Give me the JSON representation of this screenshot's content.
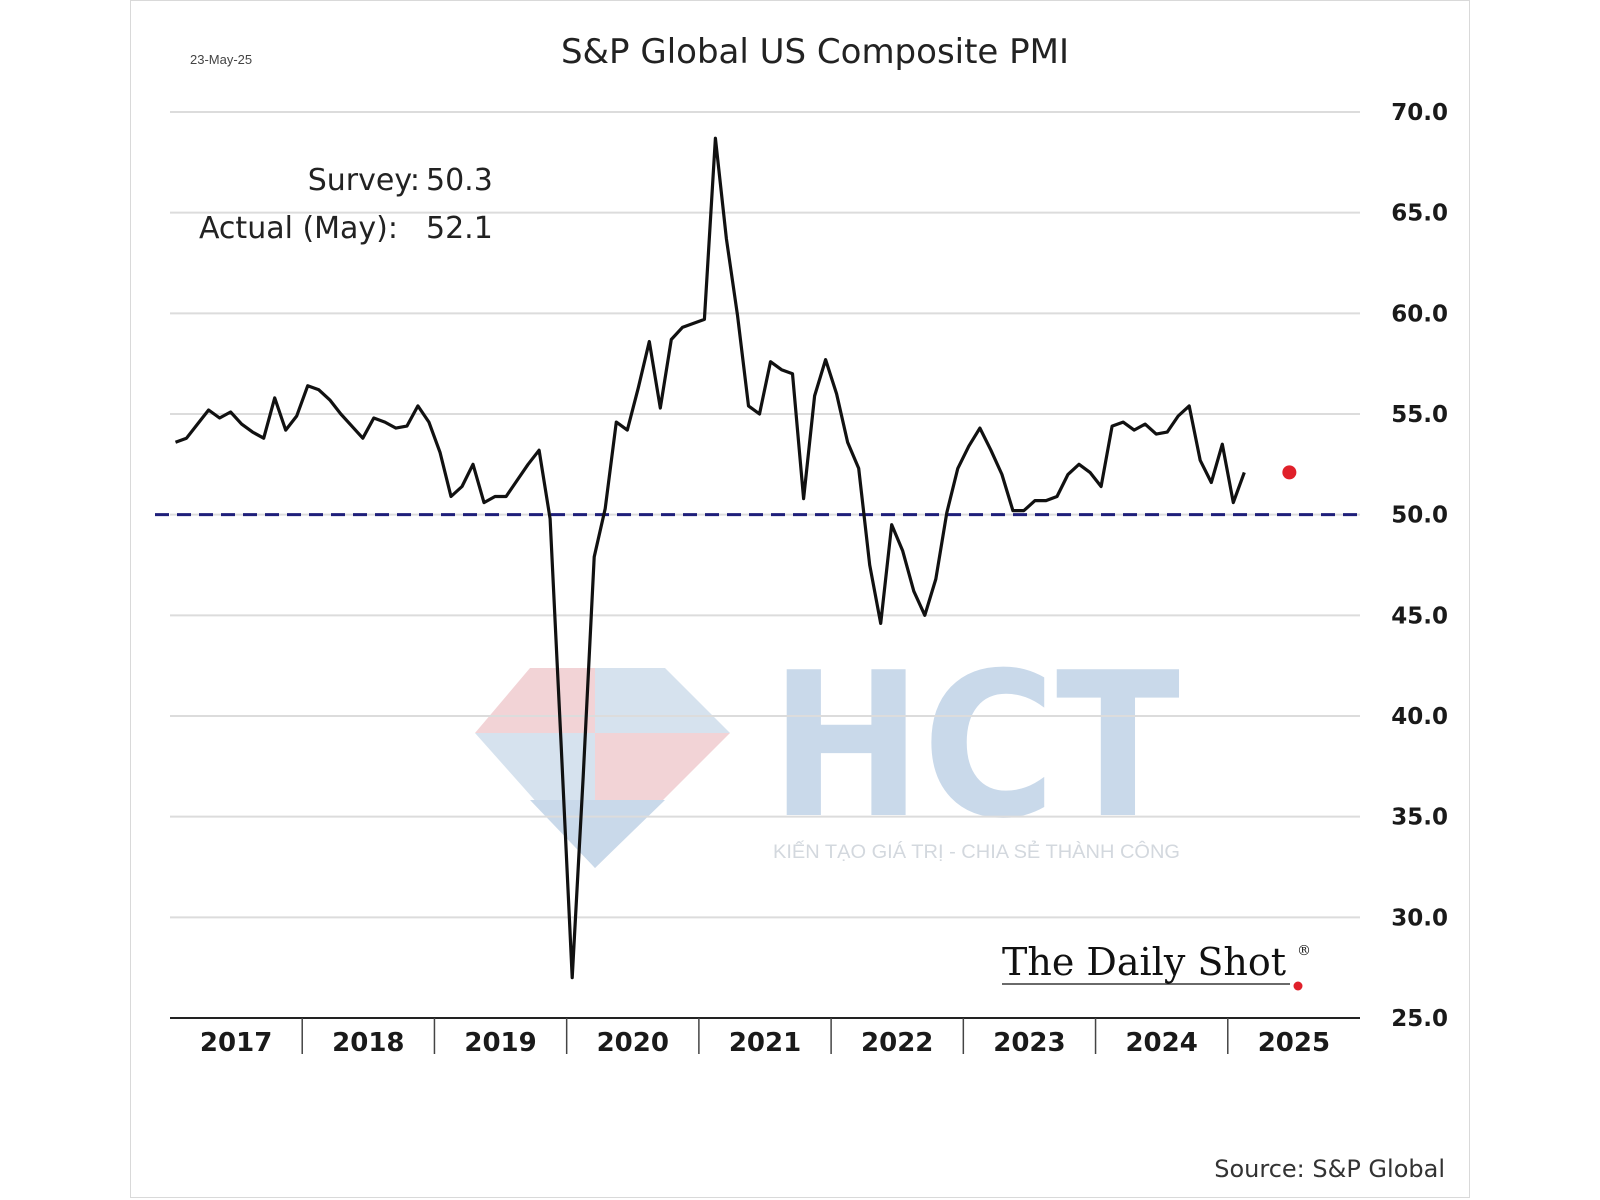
{
  "chart_data": {
    "type": "line",
    "title": "S&P Global US Composite PMI",
    "date_stamp": "23-May-25",
    "annotation": {
      "survey_label": "Survey:",
      "survey_value": "50.3",
      "actual_label": "Actual (May):",
      "actual_value": "52.1"
    },
    "source": "Source: S&P Global",
    "brand": "The Daily Shot",
    "brand_mark": "®",
    "watermark": {
      "letters": "HCT",
      "tagline": "KIẾN TẠO GIÁ TRỊ - CHIA SẺ THÀNH CÔNG"
    },
    "ylim": [
      25,
      70
    ],
    "yticks": [
      "25.0",
      "30.0",
      "35.0",
      "40.0",
      "45.0",
      "50.0",
      "55.0",
      "60.0",
      "65.0",
      "70.0"
    ],
    "years": [
      "2017",
      "2018",
      "2019",
      "2020",
      "2021",
      "2022",
      "2023",
      "2024",
      "2025"
    ],
    "reference_line": {
      "value": 50,
      "style": "dashed",
      "color": "#1f1f7a"
    },
    "start": "2017-01",
    "series": [
      {
        "color": "#111111",
        "values": [
          53.6,
          53.8,
          54.5,
          55.2,
          54.8,
          55.1,
          54.5,
          54.1,
          53.8,
          55.8,
          54.2,
          54.9,
          56.4,
          56.2,
          55.7,
          55.0,
          54.4,
          53.8,
          54.8,
          54.6,
          54.3,
          54.4,
          55.4,
          54.6,
          53.1,
          50.9,
          51.4,
          52.5,
          50.6,
          50.9,
          50.9,
          51.7,
          52.5,
          53.2,
          49.8,
          38.5,
          27.0,
          37.0,
          47.9,
          50.3,
          54.6,
          54.2,
          56.3,
          58.6,
          55.3,
          58.7,
          59.3,
          59.5,
          59.7,
          68.7,
          63.7,
          59.9,
          55.4,
          55.0,
          57.6,
          57.2,
          57.0,
          50.8,
          55.9,
          57.7,
          56.0,
          53.6,
          52.3,
          47.5,
          44.6,
          49.5,
          48.2,
          46.2,
          45.0,
          46.8,
          50.1,
          52.3,
          53.4,
          54.3,
          53.2,
          52.0,
          50.2,
          50.2,
          50.7,
          50.7,
          50.9,
          52.0,
          52.5,
          52.1,
          51.4,
          54.4,
          54.6,
          54.2,
          54.5,
          54.0,
          54.1,
          54.9,
          55.4,
          52.7,
          51.6,
          53.5,
          50.6,
          52.1
        ]
      }
    ],
    "highlight_point": {
      "label": "Actual (May)",
      "date": "2025-05",
      "value": 52.1,
      "color": "#e0202a"
    },
    "grid": true
  }
}
